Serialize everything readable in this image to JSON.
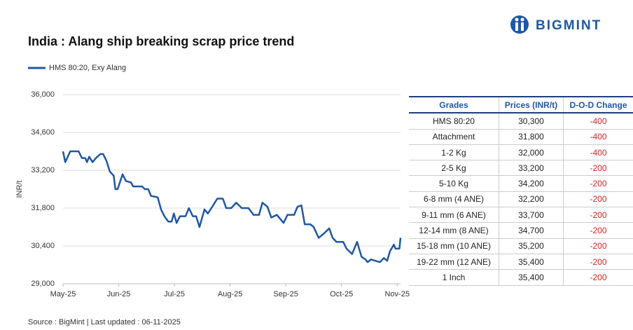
{
  "logo": "BIGMINT",
  "source": "Source : BigMint | Last updated : 06-11-2025",
  "chart_data": {
    "type": "line",
    "title": "India : Alang ship breaking scrap price trend",
    "y_label": "INR/t",
    "x": [
      0,
      0.04,
      0.13,
      0.28,
      0.34,
      0.4,
      0.43,
      0.47,
      0.53,
      0.59,
      0.67,
      0.72,
      0.78,
      0.84,
      0.91,
      0.94,
      0.98,
      1.07,
      1.13,
      1.22,
      1.26,
      1.42,
      1.47,
      1.53,
      1.58,
      1.7,
      1.76,
      1.82,
      1.89,
      1.95,
      1.99,
      2.04,
      2.1,
      2.2,
      2.26,
      2.33,
      2.39,
      2.45,
      2.54,
      2.6,
      2.68,
      2.77,
      2.87,
      2.93,
      3.02,
      3.11,
      3.21,
      3.33,
      3.42,
      3.52,
      3.58,
      3.67,
      3.74,
      3.84,
      3.9,
      3.96,
      4.03,
      4.15,
      4.21,
      4.28,
      4.34,
      4.44,
      4.5,
      4.59,
      4.68,
      4.78,
      4.84,
      4.91,
      5.03,
      5.09,
      5.19,
      5.28,
      5.36,
      5.43,
      5.47,
      5.53,
      5.69,
      5.76,
      5.82,
      5.87,
      5.94,
      5.97,
      6.04,
      6.06
    ],
    "series": [
      {
        "name": "HMS 80:20, Exy Alang",
        "color": "#1f57a4",
        "values": [
          33900,
          33500,
          33900,
          33900,
          33650,
          33650,
          33500,
          33700,
          33500,
          33650,
          33800,
          33800,
          33550,
          33150,
          33000,
          32500,
          32500,
          33050,
          32800,
          32750,
          32600,
          32600,
          32500,
          32500,
          32250,
          32200,
          31750,
          31500,
          31300,
          31300,
          31600,
          31250,
          31500,
          31500,
          31800,
          31500,
          31500,
          31100,
          31750,
          31600,
          31850,
          32150,
          32150,
          31800,
          31800,
          32000,
          31800,
          31800,
          31550,
          31550,
          32000,
          31850,
          31450,
          31550,
          31400,
          31250,
          31550,
          31550,
          31850,
          31900,
          31200,
          31200,
          31100,
          30700,
          30850,
          31050,
          30700,
          30550,
          30550,
          30300,
          30100,
          30550,
          30000,
          29900,
          29800,
          29900,
          29800,
          29950,
          29850,
          30200,
          30450,
          30300,
          30300,
          30700
        ]
      }
    ],
    "xlim": [
      0,
      6.06
    ],
    "xticks": [
      {
        "value": 0,
        "label": "May-25"
      },
      {
        "value": 1,
        "label": "Jun-25"
      },
      {
        "value": 2,
        "label": "Jul-25"
      },
      {
        "value": 3,
        "label": "Aug-25"
      },
      {
        "value": 4,
        "label": "Sep-25"
      },
      {
        "value": 5,
        "label": "Oct-25"
      },
      {
        "value": 6,
        "label": "Nov-25"
      }
    ],
    "ylim": [
      29000,
      36000
    ],
    "yticks": [
      {
        "value": 29000,
        "label": "29,000"
      },
      {
        "value": 30400,
        "label": "30,400"
      },
      {
        "value": 31800,
        "label": "31,800"
      },
      {
        "value": 33200,
        "label": "33,200"
      },
      {
        "value": 34600,
        "label": "34,600"
      },
      {
        "value": 36000,
        "label": "36,000"
      }
    ],
    "grid": true
  },
  "table": {
    "headers": [
      "Grades",
      "Prices (INR/t)",
      "D-O-D Change"
    ],
    "rows": [
      [
        "HMS 80:20",
        "30,300",
        "-400"
      ],
      [
        "Attachment",
        "31,800",
        "-400"
      ],
      [
        "1-2 Kg",
        "32,000",
        "-400"
      ],
      [
        "2-5 Kg",
        "33,200",
        "-200"
      ],
      [
        "5-10 Kg",
        "34,200",
        "-200"
      ],
      [
        "6-8 mm (4 ANE)",
        "32,200",
        "-200"
      ],
      [
        "9-11 mm (6 ANE)",
        "33,700",
        "-200"
      ],
      [
        "12-14 mm (8 ANE)",
        "34,700",
        "-200"
      ],
      [
        "15-18 mm (10 ANE)",
        "35,200",
        "-200"
      ],
      [
        "19-22 mm (12 ANE)",
        "35,400",
        "-200"
      ],
      [
        "1 Inch",
        "35,400",
        "-200"
      ]
    ]
  }
}
